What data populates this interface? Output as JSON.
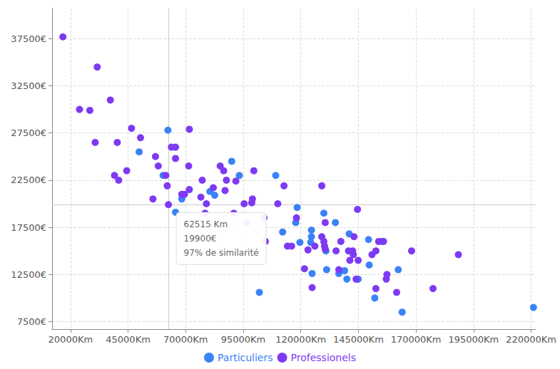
{
  "chart_data": {
    "type": "scatter",
    "marker": "circle",
    "grid": true,
    "legend": "bottom",
    "xlim": [
      12000,
      222000
    ],
    "xticks": [
      {
        "value": 20000,
        "label": "20000Km"
      },
      {
        "value": 45000,
        "label": "45000Km"
      },
      {
        "value": 70000,
        "label": "70000Km"
      },
      {
        "value": 95000,
        "label": "95000Km"
      },
      {
        "value": 120000,
        "label": "120000Km"
      },
      {
        "value": 145000,
        "label": "145000Km"
      },
      {
        "value": 170000,
        "label": "170000Km"
      },
      {
        "value": 195000,
        "label": "195000Km"
      },
      {
        "value": 220000,
        "label": "220000Km"
      }
    ],
    "ylim": [
      6700,
      40700
    ],
    "yticks": [
      {
        "value": 7500,
        "label": "7500€"
      },
      {
        "value": 12500,
        "label": "12500€"
      },
      {
        "value": 17500,
        "label": "17500€"
      },
      {
        "value": 22500,
        "label": "22500€"
      },
      {
        "value": 27500,
        "label": "27500€"
      },
      {
        "value": 32500,
        "label": "32500€"
      },
      {
        "value": 37500,
        "label": "37500€"
      }
    ],
    "series": [
      {
        "name": "Particuliers",
        "color": "#3b82f6",
        "x": [
          49800,
          60200,
          62300,
          65600,
          68300,
          80500,
          82600,
          90000,
          93300,
          96600,
          102000,
          109100,
          112100,
          117800,
          118400,
          119600,
          124300,
          124600,
          124600,
          124900,
          130000,
          130900,
          131200,
          135000,
          136500,
          139000,
          140000,
          141000,
          144900,
          149400,
          149700,
          152100,
          155000,
          162300,
          164000,
          221000
        ],
        "values": [
          25500,
          23000,
          27800,
          19100,
          20500,
          21300,
          20900,
          24500,
          23000,
          18000,
          10600,
          23000,
          17000,
          18000,
          19600,
          15900,
          15900,
          17200,
          16500,
          12600,
          19000,
          15000,
          13000,
          18000,
          12600,
          12900,
          12000,
          16800,
          12000,
          16200,
          13500,
          10000,
          16000,
          13000,
          8500,
          9000
        ]
      },
      {
        "name": "Professionels",
        "color": "#7e3af2",
        "x": [
          16700,
          23900,
          28400,
          31600,
          30700,
          37300,
          39100,
          40300,
          40900,
          44400,
          46500,
          50400,
          55800,
          56900,
          58100,
          61400,
          62000,
          62515,
          63800,
          65600,
          65600,
          68300,
          69500,
          71600,
          71300,
          71600,
          76600,
          77200,
          78400,
          79000,
          82000,
          85000,
          86500,
          87100,
          87700,
          90900,
          91800,
          95400,
          98700,
          99000,
          99600,
          104000,
          104600,
          110000,
          112700,
          114200,
          116000,
          118100,
          121600,
          123100,
          124900,
          126100,
          129100,
          129100,
          130000,
          130600,
          130300,
          130600,
          135300,
          136500,
          137400,
          140700,
          141300,
          142500,
          142800,
          143100,
          144000,
          144600,
          144900,
          150900,
          152600,
          152600,
          153800,
          155900,
          157100,
          157400,
          161600,
          168100,
          177400,
          188400
        ],
        "values": [
          37700,
          30000,
          29900,
          34500,
          26500,
          31000,
          23000,
          26500,
          22500,
          23500,
          28000,
          27000,
          20500,
          25000,
          24000,
          23000,
          21900,
          19900,
          26000,
          26000,
          24800,
          21000,
          21000,
          27900,
          24000,
          21500,
          20700,
          22500,
          19000,
          20000,
          21700,
          24000,
          23500,
          21400,
          22500,
          19000,
          22400,
          20000,
          20100,
          20500,
          23500,
          18500,
          16000,
          20000,
          21900,
          15500,
          15500,
          18500,
          13100,
          15100,
          11100,
          15500,
          16500,
          21900,
          16000,
          18000,
          15500,
          15200,
          15000,
          13000,
          16000,
          15000,
          14000,
          15000,
          14600,
          16500,
          12000,
          19400,
          14000,
          14600,
          15000,
          11000,
          16000,
          16000,
          12000,
          12500,
          10600,
          15000,
          11000,
          14600
        ]
      }
    ],
    "annotations": [
      {
        "type": "tooltip",
        "x": 62515,
        "y": 19900,
        "lines": [
          "62515 Km",
          "19900€",
          "97% de similarité"
        ]
      }
    ]
  }
}
